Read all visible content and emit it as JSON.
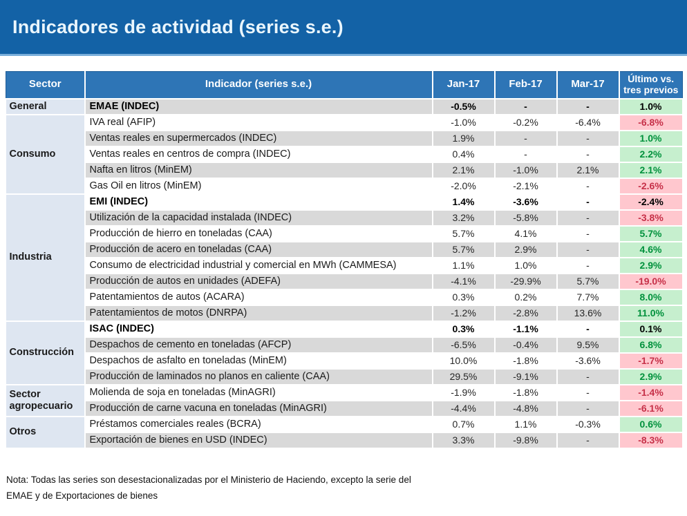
{
  "title": "Indicadores de actividad (series s.e.)",
  "note": {
    "line1": "Nota: Todas las series son desestacionalizadas por el Ministerio de Haciendo, excepto la serie del",
    "line2": "EMAE y de Exportaciones de bienes"
  },
  "colors": {
    "banner_blue": "#1362a6",
    "header_blue": "#2e75b6",
    "row_stripe_gray": "#d9d9d9",
    "sector_cell_blue": "#dee6f1",
    "good_bg": "#c6efce",
    "good_text": "#00913c",
    "bad_bg": "#ffc7ce",
    "bad_text": "#c63048"
  },
  "chart_data": {
    "type": "table",
    "columns": [
      "Sector",
      "Indicador (series s.e.)",
      "Jan-17",
      "Feb-17",
      "Mar-17",
      "Último vs. tres previos"
    ],
    "sectors": [
      {
        "name": "General",
        "rows": [
          {
            "indicator": "EMAE (INDEC)",
            "jan": "-0.5%",
            "feb": "-",
            "mar": "-",
            "ultimo": "1.0%",
            "ultimo_status": "good",
            "bold": true,
            "shaded": true
          }
        ]
      },
      {
        "name": "Consumo",
        "rows": [
          {
            "indicator": "IVA real (AFIP)",
            "jan": "-1.0%",
            "feb": "-0.2%",
            "mar": "-6.4%",
            "ultimo": "-6.8%",
            "ultimo_status": "bad",
            "bold": false,
            "shaded": false
          },
          {
            "indicator": "Ventas reales en supermercados (INDEC)",
            "jan": "1.9%",
            "feb": "-",
            "mar": "-",
            "ultimo": "1.0%",
            "ultimo_status": "good",
            "bold": false,
            "shaded": true
          },
          {
            "indicator": "Ventas reales en centros de compra (INDEC)",
            "jan": "0.4%",
            "feb": "-",
            "mar": "-",
            "ultimo": "2.2%",
            "ultimo_status": "good",
            "bold": false,
            "shaded": false
          },
          {
            "indicator": "Nafta en litros (MinEM)",
            "jan": "2.1%",
            "feb": "-1.0%",
            "mar": "2.1%",
            "ultimo": "2.1%",
            "ultimo_status": "good",
            "bold": false,
            "shaded": true
          },
          {
            "indicator": "Gas Oil en litros (MinEM)",
            "jan": "-2.0%",
            "feb": "-2.1%",
            "mar": "-",
            "ultimo": "-2.6%",
            "ultimo_status": "bad",
            "bold": false,
            "shaded": false
          }
        ]
      },
      {
        "name": "Industria",
        "rows": [
          {
            "indicator": "EMI (INDEC)",
            "jan": "1.4%",
            "feb": "-3.6%",
            "mar": "-",
            "ultimo": "-2.4%",
            "ultimo_status": "bad",
            "bold": true,
            "shaded": false
          },
          {
            "indicator": "Utilización de la capacidad instalada (INDEC)",
            "jan": "3.2%",
            "feb": "-5.8%",
            "mar": "-",
            "ultimo": "-3.8%",
            "ultimo_status": "bad",
            "bold": false,
            "shaded": true
          },
          {
            "indicator": "Producción de hierro en toneladas (CAA)",
            "jan": "5.7%",
            "feb": "4.1%",
            "mar": "-",
            "ultimo": "5.7%",
            "ultimo_status": "good",
            "bold": false,
            "shaded": false
          },
          {
            "indicator": "Producción de acero en toneladas (CAA)",
            "jan": "5.7%",
            "feb": "2.9%",
            "mar": "-",
            "ultimo": "4.6%",
            "ultimo_status": "good",
            "bold": false,
            "shaded": true
          },
          {
            "indicator": "Consumo de electricidad industrial y comercial en MWh (CAMMESA)",
            "jan": "1.1%",
            "feb": "1.0%",
            "mar": "-",
            "ultimo": "2.9%",
            "ultimo_status": "good",
            "bold": false,
            "shaded": false
          },
          {
            "indicator": "Producción de autos en unidades (ADEFA)",
            "jan": "-4.1%",
            "feb": "-29.9%",
            "mar": "5.7%",
            "ultimo": "-19.0%",
            "ultimo_status": "bad",
            "bold": false,
            "shaded": true
          },
          {
            "indicator": "Patentamientos de autos (ACARA)",
            "jan": "0.3%",
            "feb": "0.2%",
            "mar": "7.7%",
            "ultimo": "8.0%",
            "ultimo_status": "good",
            "bold": false,
            "shaded": false
          },
          {
            "indicator": "Patentamientos de motos (DNRPA)",
            "jan": "-1.2%",
            "feb": "-2.8%",
            "mar": "13.6%",
            "ultimo": "11.0%",
            "ultimo_status": "good",
            "bold": false,
            "shaded": true
          }
        ]
      },
      {
        "name": "Construcción",
        "rows": [
          {
            "indicator": "ISAC (INDEC)",
            "jan": "0.3%",
            "feb": "-1.1%",
            "mar": "-",
            "ultimo": "0.1%",
            "ultimo_status": "good",
            "bold": true,
            "shaded": false
          },
          {
            "indicator": "Despachos de cemento en toneladas (AFCP)",
            "jan": "-6.5%",
            "feb": "-0.4%",
            "mar": "9.5%",
            "ultimo": "6.8%",
            "ultimo_status": "good",
            "bold": false,
            "shaded": true
          },
          {
            "indicator": "Despachos de asfalto en toneladas (MinEM)",
            "jan": "10.0%",
            "feb": "-1.8%",
            "mar": "-3.6%",
            "ultimo": "-1.7%",
            "ultimo_status": "bad",
            "bold": false,
            "shaded": false
          },
          {
            "indicator": "Producción de laminados no planos en caliente (CAA)",
            "jan": "29.5%",
            "feb": "-9.1%",
            "mar": "-",
            "ultimo": "2.9%",
            "ultimo_status": "good",
            "bold": false,
            "shaded": true
          }
        ]
      },
      {
        "name": "Sector agropecuario",
        "rows": [
          {
            "indicator": "Molienda de soja en toneladas (MinAGRI)",
            "jan": "-1.9%",
            "feb": "-1.8%",
            "mar": "-",
            "ultimo": "-1.4%",
            "ultimo_status": "bad",
            "bold": false,
            "shaded": false
          },
          {
            "indicator": "Producción de carne vacuna en toneladas (MinAGRI)",
            "jan": "-4.4%",
            "feb": "-4.8%",
            "mar": "-",
            "ultimo": "-6.1%",
            "ultimo_status": "bad",
            "bold": false,
            "shaded": true
          }
        ]
      },
      {
        "name": "Otros",
        "rows": [
          {
            "indicator": "Préstamos comerciales reales (BCRA)",
            "jan": "0.7%",
            "feb": "1.1%",
            "mar": "-0.3%",
            "ultimo": "0.6%",
            "ultimo_status": "good",
            "bold": false,
            "shaded": false
          },
          {
            "indicator": "Exportación de bienes en USD (INDEC)",
            "jan": "3.3%",
            "feb": "-9.8%",
            "mar": "-",
            "ultimo": "-8.3%",
            "ultimo_status": "bad",
            "bold": false,
            "shaded": true
          }
        ]
      }
    ]
  }
}
